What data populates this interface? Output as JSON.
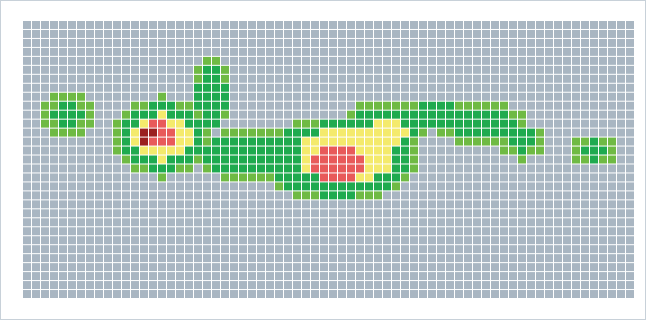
{
  "heatmap": {
    "cols": 68,
    "rows": 31,
    "colors": {
      "background": "#a9b6c2",
      "grid_line": "#ffffff",
      "level_1": "#6fba44",
      "level_2": "#1faa4f",
      "level_3": "#f4ea6c",
      "level_4": "#e85a5a",
      "level_5": "#9a1f1f"
    }
  }
}
